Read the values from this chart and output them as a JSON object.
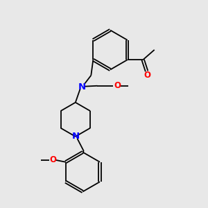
{
  "bg_color": "#e8e8e8",
  "bond_color": "#000000",
  "N_color": "#0000ff",
  "O_color": "#ff0000",
  "font_size": 8.5,
  "line_width": 1.3,
  "fig_size": [
    3.0,
    3.0
  ],
  "dpi": 100,
  "xlim": [
    0,
    10
  ],
  "ylim": [
    0,
    10
  ]
}
